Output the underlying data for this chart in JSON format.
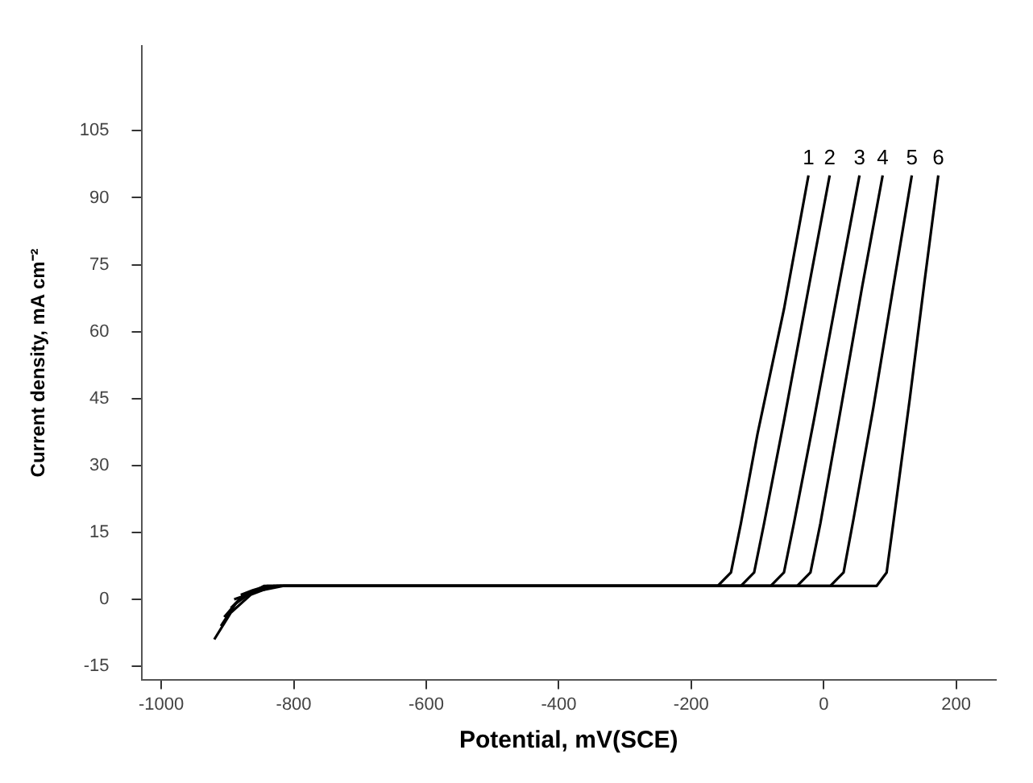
{
  "chart_data": {
    "type": "line",
    "xlabel": "Potential, mV(SCE)",
    "ylabel": "Current density, mA cm⁻²",
    "xlim": [
      -1030,
      260
    ],
    "ylim": [
      -18,
      124
    ],
    "xticks": [
      -1000,
      -800,
      -600,
      -400,
      -200,
      0,
      200
    ],
    "yticks": [
      -15,
      0,
      15,
      30,
      45,
      60,
      75,
      90,
      105
    ],
    "grid": false,
    "legend": false,
    "marker": "none",
    "line_style": "solid",
    "series": [
      {
        "name": "1",
        "color": "#000000",
        "x": [
          -920,
          -895,
          -865,
          -830,
          -600,
          -300,
          -160,
          -140,
          -125,
          -100,
          -60,
          -23
        ],
        "values": [
          -9,
          -3,
          1,
          3,
          3,
          3,
          3,
          6,
          17,
          37,
          65,
          95
        ]
      },
      {
        "name": "2",
        "color": "#000000",
        "x": [
          -910,
          -888,
          -860,
          -825,
          -600,
          -300,
          -125,
          -105,
          -90,
          -60,
          -25,
          9
        ],
        "values": [
          -6,
          -1,
          2,
          3,
          3,
          3,
          3,
          6,
          17,
          40,
          68,
          95
        ]
      },
      {
        "name": "3",
        "color": "#000000",
        "x": [
          -905,
          -882,
          -855,
          -820,
          -600,
          -300,
          -80,
          -60,
          -45,
          -15,
          20,
          54
        ],
        "values": [
          -4,
          0,
          2,
          3,
          3,
          3,
          3,
          6,
          17,
          40,
          68,
          95
        ]
      },
      {
        "name": "4",
        "color": "#000000",
        "x": [
          -895,
          -875,
          -850,
          -815,
          -600,
          -300,
          -40,
          -20,
          -5,
          25,
          58,
          89
        ],
        "values": [
          -2,
          1,
          2,
          3,
          3,
          3,
          3,
          6,
          17,
          42,
          70,
          95
        ]
      },
      {
        "name": "5",
        "color": "#000000",
        "x": [
          -890,
          -870,
          -845,
          -810,
          -600,
          -300,
          10,
          30,
          45,
          75,
          105,
          133
        ],
        "values": [
          0,
          1,
          3,
          3,
          3,
          3,
          3,
          6,
          18,
          43,
          70,
          95
        ]
      },
      {
        "name": "6",
        "color": "#000000",
        "x": [
          -880,
          -862,
          -840,
          -805,
          -600,
          -300,
          80,
          95,
          105,
          130,
          152,
          173
        ],
        "values": [
          1,
          2,
          3,
          3,
          3,
          3,
          3,
          6,
          17,
          45,
          71,
          95
        ]
      }
    ]
  }
}
